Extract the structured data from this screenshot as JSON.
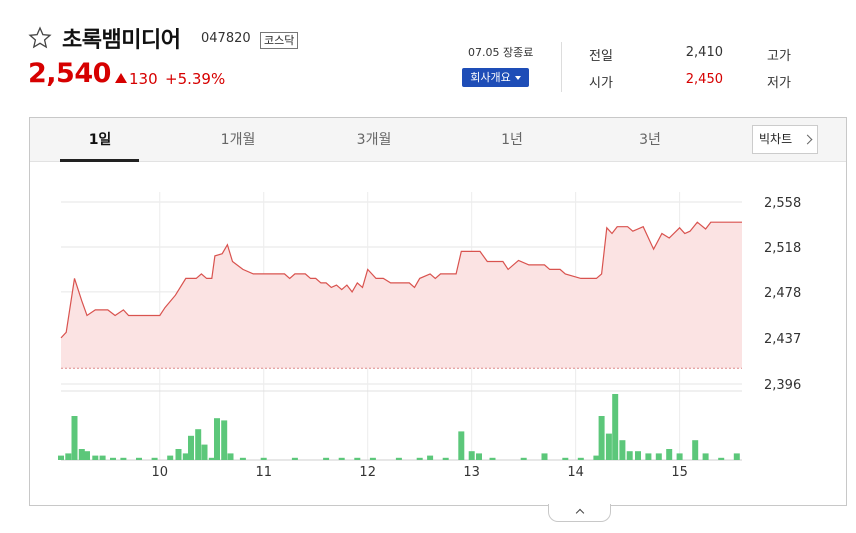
{
  "stock": {
    "name": "초록뱀미디어",
    "code": "047820",
    "market": "코스닥",
    "price": "2,540",
    "change": "130",
    "change_rate": "+5.39%",
    "close_date": "07.05 장종료",
    "company_button": "회사개요"
  },
  "stats": [
    {
      "label": "전일",
      "value": "2,410",
      "red": false
    },
    {
      "label": "시가",
      "value": "2,450",
      "red": true
    }
  ],
  "stats_right": [
    "고가",
    "저가"
  ],
  "tabs": [
    {
      "label": "1일",
      "active": true
    },
    {
      "label": "1개월",
      "active": false
    },
    {
      "label": "3개월",
      "active": false
    },
    {
      "label": "1년",
      "active": false
    },
    {
      "label": "3년",
      "active": false
    }
  ],
  "bigchart_label": "빅차트",
  "colors": {
    "up": "#d60000",
    "line": "#d9534f",
    "fill": "#fbe3e3",
    "volume": "#5cc77a",
    "accent": "#1e4db7"
  },
  "icons": [
    "star-icon",
    "chevron-right-icon",
    "chevron-up-icon"
  ],
  "chart_data": {
    "type": "line",
    "title": "",
    "xlabel": "",
    "ylabel": "",
    "ylim": [
      2396,
      2558
    ],
    "y_ticks": [
      "2,558",
      "2,518",
      "2,478",
      "2,437",
      "2,396"
    ],
    "y_tick_values": [
      2558,
      2518,
      2478,
      2437,
      2396
    ],
    "x_ticks": [
      "10",
      "11",
      "12",
      "13",
      "14",
      "15"
    ],
    "x_tick_values": [
      10,
      11,
      12,
      13,
      14,
      15
    ],
    "xlim": [
      9.05,
      15.6
    ],
    "reference_line": 2410,
    "series": [
      {
        "points": [
          [
            9.05,
            2437
          ],
          [
            9.1,
            2442
          ],
          [
            9.18,
            2490
          ],
          [
            9.25,
            2470
          ],
          [
            9.3,
            2457
          ],
          [
            9.38,
            2462
          ],
          [
            9.5,
            2462
          ],
          [
            9.57,
            2457
          ],
          [
            9.65,
            2462
          ],
          [
            9.7,
            2457
          ],
          [
            9.9,
            2457
          ],
          [
            10.0,
            2457
          ],
          [
            10.05,
            2464
          ],
          [
            10.15,
            2475
          ],
          [
            10.25,
            2490
          ],
          [
            10.35,
            2490
          ],
          [
            10.4,
            2494
          ],
          [
            10.45,
            2490
          ],
          [
            10.5,
            2490
          ],
          [
            10.53,
            2510
          ],
          [
            10.6,
            2512
          ],
          [
            10.65,
            2520
          ],
          [
            10.7,
            2505
          ],
          [
            10.8,
            2498
          ],
          [
            10.9,
            2494
          ],
          [
            11.2,
            2494
          ],
          [
            11.25,
            2490
          ],
          [
            11.3,
            2494
          ],
          [
            11.4,
            2494
          ],
          [
            11.45,
            2490
          ],
          [
            11.5,
            2490
          ],
          [
            11.55,
            2486
          ],
          [
            11.6,
            2486
          ],
          [
            11.65,
            2482
          ],
          [
            11.7,
            2484
          ],
          [
            11.75,
            2480
          ],
          [
            11.8,
            2484
          ],
          [
            11.85,
            2478
          ],
          [
            11.9,
            2486
          ],
          [
            11.95,
            2482
          ],
          [
            12.0,
            2498
          ],
          [
            12.08,
            2490
          ],
          [
            12.15,
            2490
          ],
          [
            12.22,
            2486
          ],
          [
            12.4,
            2486
          ],
          [
            12.45,
            2482
          ],
          [
            12.5,
            2490
          ],
          [
            12.6,
            2494
          ],
          [
            12.65,
            2490
          ],
          [
            12.7,
            2494
          ],
          [
            12.85,
            2494
          ],
          [
            12.9,
            2514
          ],
          [
            13.08,
            2514
          ],
          [
            13.15,
            2505
          ],
          [
            13.3,
            2505
          ],
          [
            13.35,
            2498
          ],
          [
            13.45,
            2506
          ],
          [
            13.55,
            2502
          ],
          [
            13.7,
            2502
          ],
          [
            13.75,
            2498
          ],
          [
            13.85,
            2498
          ],
          [
            13.9,
            2494
          ],
          [
            14.05,
            2490
          ],
          [
            14.2,
            2490
          ],
          [
            14.25,
            2494
          ],
          [
            14.3,
            2535
          ],
          [
            14.35,
            2530
          ],
          [
            14.4,
            2536
          ],
          [
            14.5,
            2536
          ],
          [
            14.55,
            2532
          ],
          [
            14.65,
            2536
          ],
          [
            14.75,
            2516
          ],
          [
            14.83,
            2530
          ],
          [
            14.9,
            2526
          ],
          [
            15.0,
            2535
          ],
          [
            15.05,
            2530
          ],
          [
            15.1,
            2532
          ],
          [
            15.17,
            2540
          ],
          [
            15.25,
            2534
          ],
          [
            15.3,
            2540
          ],
          [
            15.4,
            2540
          ],
          [
            15.6,
            2540
          ]
        ]
      }
    ],
    "volume": [
      [
        9.05,
        2
      ],
      [
        9.12,
        3
      ],
      [
        9.18,
        20
      ],
      [
        9.25,
        5
      ],
      [
        9.3,
        4
      ],
      [
        9.38,
        2
      ],
      [
        9.45,
        2
      ],
      [
        9.55,
        1
      ],
      [
        9.65,
        1
      ],
      [
        9.8,
        1
      ],
      [
        9.95,
        1
      ],
      [
        10.1,
        2
      ],
      [
        10.18,
        5
      ],
      [
        10.25,
        3
      ],
      [
        10.3,
        11
      ],
      [
        10.37,
        14
      ],
      [
        10.43,
        7
      ],
      [
        10.5,
        1
      ],
      [
        10.55,
        19
      ],
      [
        10.62,
        18
      ],
      [
        10.68,
        3
      ],
      [
        10.8,
        1
      ],
      [
        11.0,
        1
      ],
      [
        11.3,
        1
      ],
      [
        11.6,
        1
      ],
      [
        11.75,
        1
      ],
      [
        11.9,
        1
      ],
      [
        12.05,
        1
      ],
      [
        12.3,
        1
      ],
      [
        12.5,
        1
      ],
      [
        12.6,
        2
      ],
      [
        12.75,
        1
      ],
      [
        12.9,
        13
      ],
      [
        13.0,
        4
      ],
      [
        13.07,
        3
      ],
      [
        13.2,
        1
      ],
      [
        13.5,
        1
      ],
      [
        13.7,
        3
      ],
      [
        13.9,
        1
      ],
      [
        14.05,
        1
      ],
      [
        14.2,
        2
      ],
      [
        14.25,
        20
      ],
      [
        14.32,
        12
      ],
      [
        14.38,
        30
      ],
      [
        14.45,
        9
      ],
      [
        14.52,
        4
      ],
      [
        14.6,
        4
      ],
      [
        14.7,
        3
      ],
      [
        14.8,
        3
      ],
      [
        14.9,
        5
      ],
      [
        15.0,
        3
      ],
      [
        15.15,
        9
      ],
      [
        15.25,
        3
      ],
      [
        15.4,
        1
      ],
      [
        15.55,
        3
      ]
    ],
    "grid": true,
    "legend": "none"
  }
}
